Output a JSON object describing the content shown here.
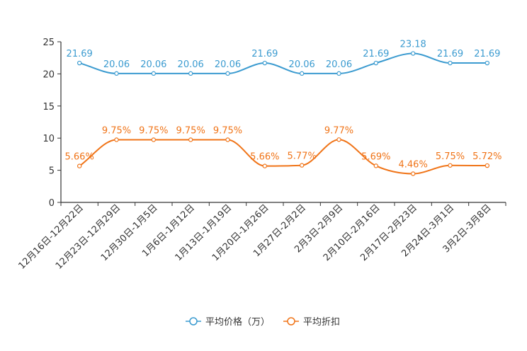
{
  "chart_data": {
    "type": "line",
    "title": "",
    "xlabel": "",
    "ylabel": "",
    "ylim": [
      0,
      25
    ],
    "yticks": [
      0,
      5,
      10,
      15,
      20,
      25
    ],
    "grid": false,
    "legend_position": "bottom",
    "categories": [
      "12月16日-12月22日",
      "12月23日-12月29日",
      "12月30日-1月5日",
      "1月6日-1月12日",
      "1月13日-1月19日",
      "1月20日-1月26日",
      "1月27日-2月2日",
      "2月3日-2月9日",
      "2月10日-2月16日",
      "2月17日-2月23日",
      "2月24日-3月1日",
      "3月2日-3月8日"
    ],
    "series": [
      {
        "name": "平均价格（万）",
        "color": "#3b9bd0",
        "values": [
          21.69,
          20.06,
          20.06,
          20.06,
          20.06,
          21.69,
          20.06,
          20.06,
          21.69,
          23.18,
          21.69,
          21.69
        ],
        "labels": [
          "21.69",
          "20.06",
          "20.06",
          "20.06",
          "20.06",
          "21.69",
          "20.06",
          "20.06",
          "21.69",
          "23.18",
          "21.69",
          "21.69"
        ]
      },
      {
        "name": "平均折扣",
        "color": "#f07418",
        "values": [
          5.66,
          9.75,
          9.75,
          9.75,
          9.75,
          5.66,
          5.77,
          9.77,
          5.69,
          4.46,
          5.75,
          5.72
        ],
        "labels": [
          "5.66%",
          "9.75%",
          "9.75%",
          "9.75%",
          "9.75%",
          "5.66%",
          "5.77%",
          "9.77%",
          "5.69%",
          "4.46%",
          "5.75%",
          "5.72%"
        ]
      }
    ]
  }
}
